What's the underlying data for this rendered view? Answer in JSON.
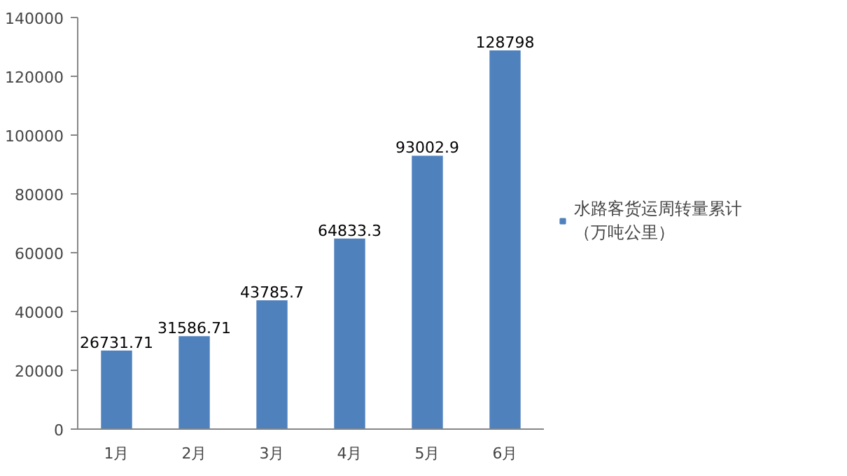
{
  "chart_data": {
    "type": "bar",
    "categories": [
      "1月",
      "2月",
      "3月",
      "4月",
      "5月",
      "6月"
    ],
    "series": [
      {
        "name": "水路客货运周转量累计（万吨公里）",
        "color": "#4f81bd",
        "values": [
          26731.71,
          31586.71,
          43785.7,
          64833.3,
          93002.9,
          128798
        ]
      }
    ],
    "ylim": [
      0,
      140000
    ],
    "yticks": [
      0,
      20000,
      40000,
      60000,
      80000,
      100000,
      120000,
      140000
    ],
    "data_labels": true,
    "legend": "right"
  }
}
